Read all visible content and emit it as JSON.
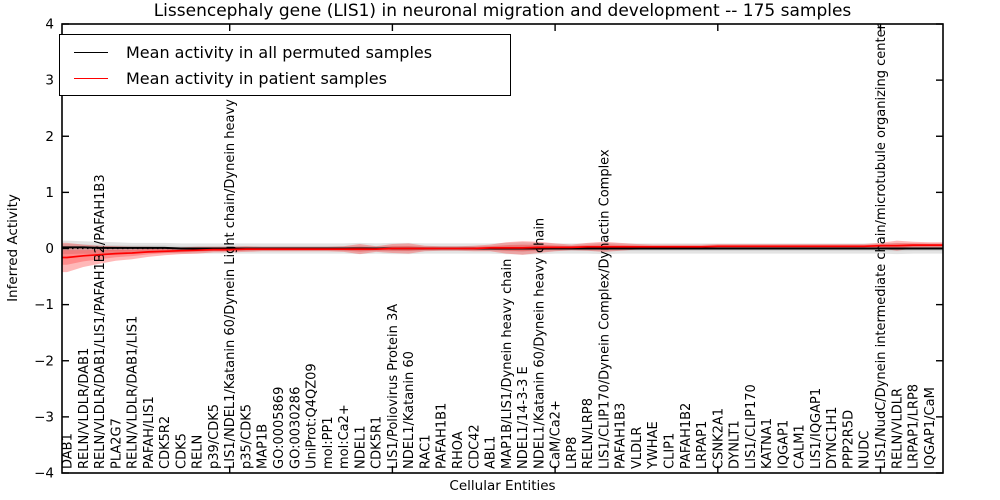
{
  "figure": {
    "title": "Lissencephaly gene (LIS1) in neuronal migration and development -- 175 samples"
  },
  "legend": {
    "items": [
      {
        "label": "Mean activity in all permuted samples",
        "color": "#000000"
      },
      {
        "label": "Mean activity in patient samples",
        "color": "#ff0000"
      }
    ]
  },
  "chart_data": {
    "type": "line",
    "title": "Lissencephaly gene (LIS1) in neuronal migration and development -- 175 samples",
    "xlabel": "Cellular Entities",
    "ylabel": "Inferred Activity",
    "ylim": [
      -4,
      4
    ],
    "ytick_labels": [
      "4",
      "3",
      "2",
      "1",
      "0",
      "−1",
      "−2",
      "−3",
      "−4"
    ],
    "ytick_values": [
      4,
      3,
      2,
      1,
      0,
      -1,
      -2,
      -3,
      -4
    ],
    "x_major_tick_indices": [
      10,
      20,
      30,
      40,
      50
    ],
    "zero_reference_line": 0,
    "grid": false,
    "legend_position": "upper left",
    "categories": [
      "DAB1",
      "RELN/VLDLR/DAB1",
      "RELN/VLDLR/DAB1/LIS1/PAFAH1B2/PAFAH1B3",
      "PLA2G7",
      "RELN/VLDLR/DAB1/LIS1",
      "PAFAH/LIS1",
      "CDK5R2",
      "CDK5",
      "RELN",
      "p39/CDK5",
      "LIS1/NDEL1/Katanin 60/Dynein Light chain/Dynein heavy chain",
      "p35/CDK5",
      "MAP1B",
      "GO:0005869",
      "GO:0030286",
      "UniProt:Q4QZ09",
      "mol:PP1",
      "mol:Ca2+",
      "NDEL1",
      "CDK5R1",
      "LIS1/Poliovirus Protein 3A",
      "NDEL1/Katanin 60",
      "RAC1",
      "PAFAH1B1",
      "RHOA",
      "CDC42",
      "ABL1",
      "MAP1B/LIS1/Dynein heavy chain",
      "NDEL1/14-3-3 E",
      "NDEL1/Katanin 60/Dynein heavy chain",
      "CaM/Ca2+",
      "LRP8",
      "RELN/LRP8",
      "LIS1/CLIP170/Dynein Complex/Dynactin Complex",
      "PAFAH1B3",
      "VLDLR",
      "YWHAE",
      "CLIP1",
      "PAFAH1B2",
      "LRPAP1",
      "CSNK2A1",
      "DYNLT1",
      "LIS1/CLIP170",
      "KATNA1",
      "IQGAP1",
      "CALM1",
      "LIS1/IQGAP1",
      "DYNC1H1",
      "PPP2R5D",
      "NUDC",
      "LIS1/NudC/Dynein intermediate chain/microtubule organizing center",
      "RELN/VLDLR",
      "LRPAP1/LRP8",
      "IQGAP1/CaM"
    ],
    "series": [
      {
        "name": "Mean activity in all permuted samples",
        "color": "#000000",
        "line_width": 2,
        "band_color": "#b0b0b0",
        "band_alpha": 0.35,
        "values": [
          0.02,
          0.02,
          0.01,
          0.01,
          0.01,
          0.01,
          0.01,
          0,
          0,
          0,
          0,
          0,
          0,
          0,
          0,
          0,
          0,
          0,
          0,
          0,
          0,
          0,
          0,
          0,
          0,
          0,
          0,
          0,
          0,
          0,
          0,
          0,
          0,
          0,
          0,
          0,
          0,
          0,
          0,
          0,
          0,
          0,
          0,
          0,
          0,
          0,
          0,
          0,
          0,
          0,
          0,
          0,
          0,
          0
        ],
        "band_halfwidth": [
          0.12,
          0.11,
          0.11,
          0.1,
          0.09,
          0.09,
          0.09,
          0.09,
          0.09,
          0.09,
          0.09,
          0.09,
          0.09,
          0.09,
          0.09,
          0.09,
          0.09,
          0.09,
          0.1,
          0.09,
          0.1,
          0.1,
          0.09,
          0.09,
          0.09,
          0.09,
          0.09,
          0.1,
          0.11,
          0.1,
          0.09,
          0.09,
          0.09,
          0.1,
          0.09,
          0.09,
          0.09,
          0.09,
          0.09,
          0.09,
          0.09,
          0.09,
          0.09,
          0.09,
          0.09,
          0.09,
          0.09,
          0.09,
          0.09,
          0.09,
          0.09,
          0.1,
          0.09,
          0.09
        ]
      },
      {
        "name": "Mean activity in patient samples",
        "color": "#ff0000",
        "line_width": 1.7,
        "band_color": "#ff0000",
        "band_alpha": 0.28,
        "values": [
          -0.16,
          -0.13,
          -0.11,
          -0.09,
          -0.08,
          -0.06,
          -0.05,
          -0.04,
          -0.03,
          -0.02,
          -0.02,
          -0.01,
          -0.01,
          -0.01,
          -0.01,
          -0.01,
          -0.01,
          -0.01,
          -0.01,
          -0.01,
          0,
          0,
          0,
          0,
          0,
          0,
          0.01,
          0.01,
          0.01,
          0.02,
          0.02,
          0.02,
          0.03,
          0.03,
          0.03,
          0.03,
          0.03,
          0.03,
          0.03,
          0.03,
          0.04,
          0.04,
          0.04,
          0.04,
          0.04,
          0.04,
          0.04,
          0.04,
          0.04,
          0.04,
          0.05,
          0.05,
          0.06,
          0.06
        ],
        "band_halfwidth": [
          0.26,
          0.2,
          0.16,
          0.13,
          0.11,
          0.09,
          0.07,
          0.06,
          0.06,
          0.05,
          0.05,
          0.05,
          0.04,
          0.04,
          0.04,
          0.04,
          0.04,
          0.05,
          0.09,
          0.05,
          0.08,
          0.09,
          0.05,
          0.04,
          0.04,
          0.05,
          0.06,
          0.1,
          0.12,
          0.1,
          0.07,
          0.05,
          0.07,
          0.09,
          0.07,
          0.05,
          0.04,
          0.04,
          0.04,
          0.04,
          0.04,
          0.04,
          0.04,
          0.04,
          0.04,
          0.04,
          0.04,
          0.04,
          0.04,
          0.04,
          0.05,
          0.09,
          0.06,
          0.05
        ]
      }
    ]
  }
}
